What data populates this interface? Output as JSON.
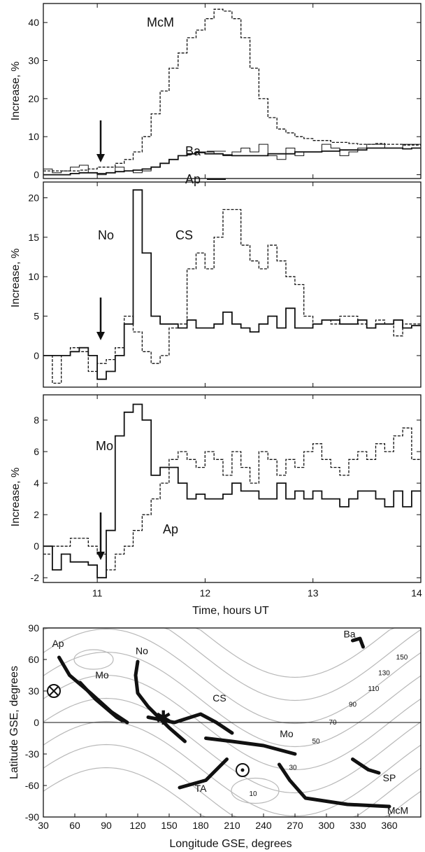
{
  "colors": {
    "ink": "#111111",
    "contour": "#b8b8b8",
    "background": "#ffffff"
  },
  "chart_data": [
    {
      "type": "line",
      "step": true,
      "xlabel": "",
      "ylabel": "Increase, %",
      "xlim": [
        10.5,
        14
      ],
      "ylim": [
        -1,
        45
      ],
      "yticks": [
        0,
        10,
        20,
        30,
        40
      ],
      "arrow_at": 11.0,
      "series": [
        {
          "name": "McM",
          "style": "dashed",
          "x0": 10.5,
          "dx": 0.0833,
          "values": [
            1,
            1,
            1,
            1,
            1.2,
            1.5,
            2,
            2,
            3,
            4,
            6,
            10,
            16,
            22,
            28,
            32,
            36,
            38,
            41,
            43.5,
            43,
            41,
            36,
            28,
            20,
            15,
            12,
            11,
            10,
            9.5,
            9,
            9,
            8.5,
            8.5,
            8.2,
            8,
            8,
            8.2,
            8,
            8,
            7.8,
            7.8
          ]
        },
        {
          "name": "Ba",
          "style": "thin-solid",
          "x0": 10.5,
          "dx": 0.0833,
          "values": [
            1.5,
            0.5,
            1,
            2,
            2.5,
            0.5,
            0,
            0.5,
            2,
            1,
            0.5,
            1,
            2,
            3,
            4,
            5,
            5.5,
            6,
            6,
            5.5,
            5,
            6,
            7,
            6,
            8,
            5,
            4,
            7,
            5,
            6,
            6,
            8,
            7,
            5,
            6,
            7,
            8,
            8,
            7,
            7,
            8,
            8
          ]
        },
        {
          "name": "Ap",
          "style": "solid",
          "x0": 10.5,
          "dx": 0.0833,
          "values": [
            0,
            0,
            0,
            0.3,
            0.5,
            0.5,
            0.3,
            0.5,
            0.8,
            1,
            1.2,
            1.5,
            2,
            3,
            4,
            5,
            5.5,
            5.8,
            5.5,
            5.5,
            5.2,
            5,
            5,
            5,
            5,
            5.5,
            5.5,
            5.5,
            6,
            6,
            6,
            6.2,
            6.2,
            6.5,
            6.5,
            6.5,
            7,
            7,
            7,
            7,
            6.8,
            7
          ]
        }
      ],
      "labels": {
        "McM": "McM",
        "Ba": "Ba",
        "Ap": "Ap"
      }
    },
    {
      "type": "line",
      "step": true,
      "xlabel": "",
      "ylabel": "Increase, %",
      "xlim": [
        10.5,
        14
      ],
      "ylim": [
        -4,
        22
      ],
      "yticks": [
        0,
        5,
        10,
        15,
        20
      ],
      "arrow_at": 11.0,
      "series": [
        {
          "name": "No",
          "style": "solid",
          "x0": 10.5,
          "dx": 0.0833,
          "values": [
            0,
            0,
            0,
            0.5,
            1,
            0,
            -3,
            -2,
            0,
            4,
            21,
            13,
            5,
            4,
            4,
            3.5,
            4.5,
            3.5,
            3.5,
            4,
            5.5,
            4,
            3.5,
            3,
            4,
            5,
            3.5,
            6,
            3.5,
            3.5,
            4,
            4.5,
            4.5,
            4,
            4,
            4.5,
            3.5,
            4,
            4,
            4.5,
            3.5,
            3.8
          ]
        },
        {
          "name": "CS",
          "style": "dashed",
          "x0": 10.5,
          "dx": 0.0833,
          "values": [
            0,
            -3.5,
            0,
            1,
            0.5,
            -2,
            -1,
            -0.5,
            1,
            5,
            3,
            0.5,
            -1,
            0,
            3.5,
            4,
            11,
            13,
            11,
            15,
            18.5,
            18.5,
            14,
            12,
            11,
            14,
            12,
            10,
            9,
            5,
            4,
            4.5,
            4,
            5,
            5,
            4,
            3.5,
            4.5,
            4,
            2.5,
            4,
            4
          ]
        }
      ],
      "labels": {
        "No": "No",
        "CS": "CS"
      }
    },
    {
      "type": "line",
      "step": true,
      "xlabel": "Time, hours UT",
      "ylabel": "Increase, %",
      "xlim": [
        10.5,
        14
      ],
      "ylim": [
        -2.3,
        9.6
      ],
      "yticks": [
        -2,
        0,
        2,
        4,
        6,
        8
      ],
      "xticks": [
        11,
        12,
        13,
        14
      ],
      "arrow_at": 11.0,
      "series": [
        {
          "name": "Mo",
          "style": "solid",
          "x0": 10.5,
          "dx": 0.0833,
          "values": [
            0,
            -1.5,
            -0.5,
            -1,
            -1,
            -1.2,
            -2,
            1,
            7,
            8.5,
            9,
            8,
            4.5,
            5,
            5,
            4,
            3,
            3.3,
            3,
            3,
            3.3,
            4,
            3.5,
            3.5,
            3,
            3,
            4,
            3,
            3.5,
            3,
            3.5,
            3,
            3,
            2.5,
            3,
            3.5,
            3.5,
            3,
            2.5,
            3.5,
            2.5,
            3.5
          ]
        },
        {
          "name": "Ap",
          "style": "dashed",
          "x0": 10.5,
          "dx": 0.0833,
          "values": [
            -0.5,
            0,
            0,
            0.5,
            0.5,
            0,
            -0.5,
            -1.5,
            -0.5,
            0,
            1,
            2,
            3,
            4,
            5.5,
            6,
            5.5,
            5,
            6,
            5.5,
            4.5,
            6,
            5,
            4,
            6,
            5.5,
            4.5,
            5.5,
            5,
            6,
            6.5,
            5.5,
            5,
            4.5,
            5.5,
            6,
            5.5,
            6.5,
            6,
            7,
            7.5,
            5.5
          ]
        }
      ],
      "labels": {
        "Mo": "Mo",
        "Ap": "Ap"
      }
    },
    {
      "type": "line",
      "xlabel": "Longitude  GSE, degrees",
      "ylabel": "Latitude  GSE, degrees",
      "xlim": [
        30,
        390
      ],
      "ylim": [
        -90,
        90
      ],
      "xticks": [
        30,
        60,
        90,
        120,
        150,
        180,
        210,
        240,
        270,
        300,
        330,
        360
      ],
      "yticks": [
        -90,
        -60,
        -30,
        0,
        30,
        60,
        90
      ],
      "contour_labels": [
        "10",
        "30",
        "50",
        "70",
        "90",
        "110",
        "130",
        "150"
      ],
      "station_labels": [
        "Ap",
        "Mo",
        "No",
        "CS",
        "Mo",
        "Ba",
        "TA",
        "SP",
        "McM"
      ],
      "series": [
        {
          "name": "Ap",
          "points": [
            [
              45,
              62
            ],
            [
              55,
              45
            ],
            [
              75,
              28
            ],
            [
              95,
              10
            ],
            [
              110,
              0
            ]
          ]
        },
        {
          "name": "Mo",
          "points": [
            [
              65,
              38
            ],
            [
              80,
              22
            ],
            [
              100,
              5
            ],
            [
              105,
              2
            ]
          ]
        },
        {
          "name": "No",
          "points": [
            [
              120,
              58
            ],
            [
              118,
              45
            ],
            [
              120,
              28
            ],
            [
              130,
              15
            ],
            [
              150,
              -5
            ],
            [
              165,
              -18
            ]
          ]
        },
        {
          "name": "CS",
          "points": [
            [
              130,
              5
            ],
            [
              155,
              0
            ],
            [
              180,
              8
            ],
            [
              195,
              0
            ],
            [
              210,
              -10
            ]
          ]
        },
        {
          "name": "Mo",
          "points": [
            [
              185,
              -15
            ],
            [
              210,
              -18
            ],
            [
              240,
              -22
            ],
            [
              270,
              -30
            ]
          ]
        },
        {
          "name": "TA",
          "points": [
            [
              160,
              -62
            ],
            [
              185,
              -55
            ],
            [
              205,
              -35
            ]
          ]
        },
        {
          "name": "McM",
          "points": [
            [
              255,
              -40
            ],
            [
              265,
              -55
            ],
            [
              280,
              -72
            ],
            [
              320,
              -78
            ],
            [
              360,
              -80
            ]
          ]
        },
        {
          "name": "SP",
          "points": [
            [
              325,
              -35
            ],
            [
              340,
              -45
            ],
            [
              350,
              -48
            ]
          ]
        },
        {
          "name": "Ba",
          "points": [
            [
              325,
              78
            ],
            [
              332,
              80
            ],
            [
              335,
              72
            ]
          ]
        }
      ],
      "symbols": {
        "anti-sun": [
          30,
          30
        ],
        "sun": [
          220,
          -45
        ],
        "asterisk": [
          140,
          5
        ]
      }
    }
  ]
}
